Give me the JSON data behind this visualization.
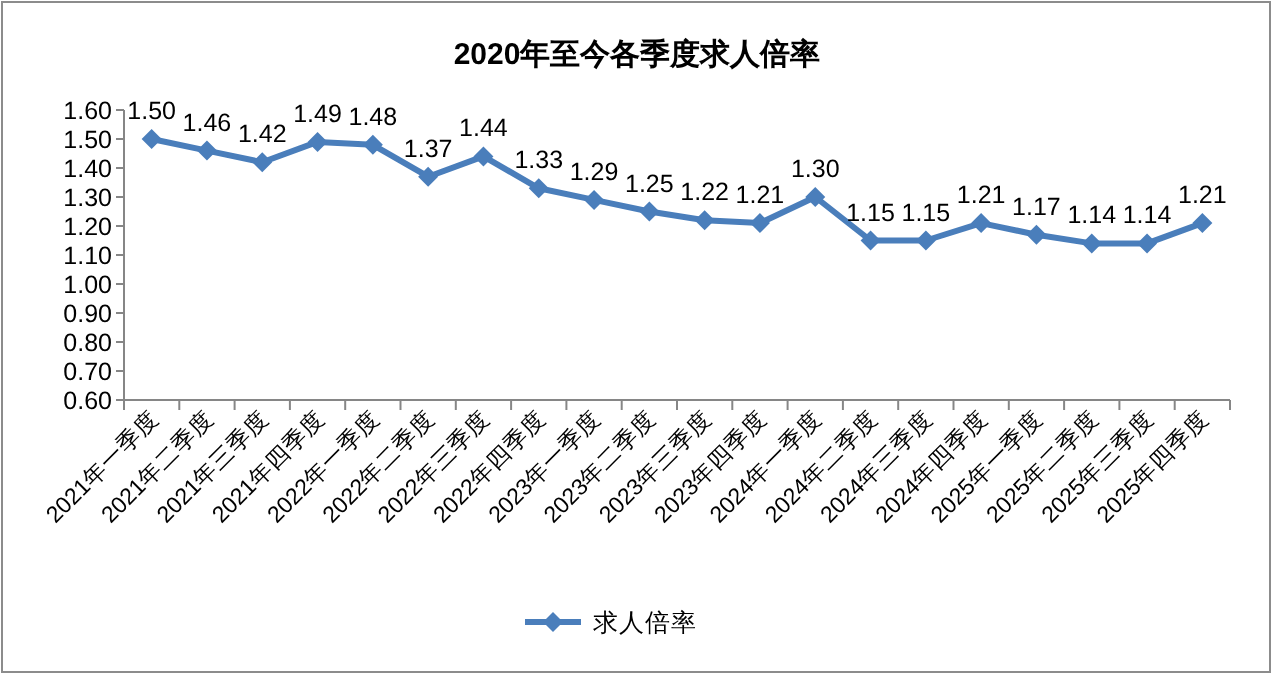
{
  "chart_data": {
    "type": "line",
    "title": "2020年至今各季度求人倍率",
    "categories": [
      "2021年一季度",
      "2021年二季度",
      "2021年三季度",
      "2021年四季度",
      "2022年一季度",
      "2022年二季度",
      "2022年三季度",
      "2022年四季度",
      "2023年一季度",
      "2023年二季度",
      "2023年三季度",
      "2023年四季度",
      "2024年一季度",
      "2024年二季度",
      "2024年三季度",
      "2024年四季度",
      "2025年一季度",
      "2025年二季度",
      "2025年三季度",
      "2025年四季度"
    ],
    "series": [
      {
        "name": "求人倍率",
        "color": "#4a7ebb",
        "values": [
          1.5,
          1.46,
          1.42,
          1.49,
          1.48,
          1.37,
          1.44,
          1.33,
          1.29,
          1.25,
          1.22,
          1.21,
          1.3,
          1.15,
          1.15,
          1.21,
          1.17,
          1.14,
          1.14,
          1.21
        ],
        "value_labels": [
          "1.50",
          "1.46",
          "1.42",
          "1.49",
          "1.48",
          "1.37",
          "1.44",
          "1.33",
          "1.29",
          "1.25",
          "1.22",
          "1.21",
          "1.30",
          "1.15",
          "1.15",
          "1.21",
          "1.17",
          "1.14",
          "1.14",
          "1.21"
        ]
      }
    ],
    "ylim": [
      0.6,
      1.6
    ],
    "yticks": [
      {
        "value": 0.6,
        "label": "0.60"
      },
      {
        "value": 0.7,
        "label": "0.70"
      },
      {
        "value": 0.8,
        "label": "0.80"
      },
      {
        "value": 0.9,
        "label": "0.90"
      },
      {
        "value": 1.0,
        "label": "1.00"
      },
      {
        "value": 1.1,
        "label": "1.10"
      },
      {
        "value": 1.2,
        "label": "1.20"
      },
      {
        "value": 1.3,
        "label": "1.30"
      },
      {
        "value": 1.4,
        "label": "1.40"
      },
      {
        "value": 1.5,
        "label": "1.50"
      },
      {
        "value": 1.6,
        "label": "1.60"
      }
    ],
    "grid": false,
    "legend": "bottom",
    "marker": "diamond",
    "line_style": "solid"
  }
}
